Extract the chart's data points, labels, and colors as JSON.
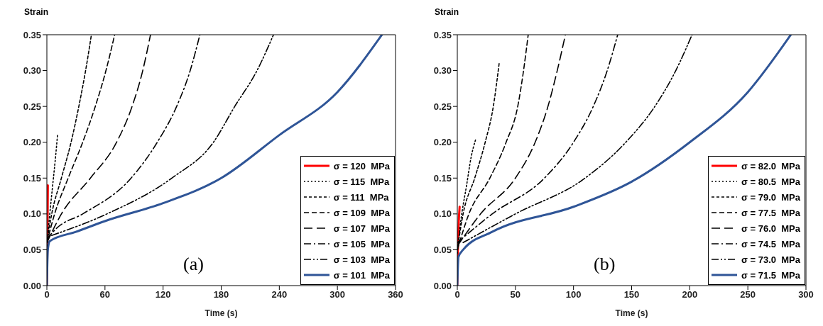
{
  "chart_data": [
    {
      "type": "line",
      "xlabel": "Time (s)",
      "ylabel": "Strain",
      "annotations": [
        "(a)"
      ],
      "xlim": [
        0,
        360
      ],
      "xticks": [
        0,
        60,
        120,
        180,
        240,
        300,
        360
      ],
      "ylim": [
        0,
        0.35
      ],
      "yticks": [
        {
          "value": 0,
          "label": "0.00"
        },
        {
          "value": 0.05,
          "label": "0.05"
        },
        {
          "value": 0.1,
          "label": "0.10"
        },
        {
          "value": 0.15,
          "label": "0.15"
        },
        {
          "value": 0.2,
          "label": "0.20"
        },
        {
          "value": 0.25,
          "label": "0.25"
        },
        {
          "value": 0.3,
          "label": "0.30"
        },
        {
          "value": 0.35,
          "label": "0.35"
        }
      ],
      "grid": false,
      "legend": "bottom right",
      "marker": "none",
      "series": [
        {
          "name": "σ = 120  MPa",
          "color": "#ff0000",
          "line_style": "solid",
          "x": [
            0,
            0.5,
            1
          ],
          "values": [
            0,
            0.05,
            0.14
          ]
        },
        {
          "name": "σ = 115  MPa",
          "color": "#000000",
          "line_style": "dotted",
          "x": [
            0,
            1,
            3,
            6,
            9,
            11
          ],
          "values": [
            0.05,
            0.07,
            0.1,
            0.14,
            0.18,
            0.21
          ]
        },
        {
          "name": "σ = 111  MPa",
          "color": "#000000",
          "line_style": "dashed",
          "x": [
            0,
            5,
            15,
            25,
            33,
            40,
            46
          ],
          "values": [
            0.06,
            0.1,
            0.15,
            0.2,
            0.25,
            0.3,
            0.35
          ]
        },
        {
          "name": "σ = 109  MPa",
          "color": "#000000",
          "line_style": "dashed",
          "x": [
            0,
            8,
            22,
            37,
            50,
            61,
            70
          ],
          "values": [
            0.06,
            0.1,
            0.15,
            0.2,
            0.25,
            0.3,
            0.35
          ]
        },
        {
          "name": "σ = 107  MPa",
          "color": "#000000",
          "line_style": "dashed",
          "x": [
            0,
            15,
            45,
            72,
            88,
            99,
            107
          ],
          "values": [
            0.06,
            0.1,
            0.15,
            0.2,
            0.25,
            0.3,
            0.35
          ]
        },
        {
          "name": "σ = 105  MPa",
          "color": "#000000",
          "line_style": "dashed",
          "x": [
            0,
            10,
            37,
            87,
            114,
            134,
            148,
            158
          ],
          "values": [
            0.065,
            0.08,
            0.1,
            0.15,
            0.2,
            0.25,
            0.3,
            0.35
          ]
        },
        {
          "name": "σ = 103  MPa",
          "color": "#000000",
          "line_style": "dashed",
          "x": [
            5,
            62,
            129,
            172,
            194,
            217,
            234
          ],
          "values": [
            0.07,
            0.1,
            0.15,
            0.2,
            0.25,
            0.3,
            0.35
          ]
        },
        {
          "name": "σ = 101  MPa",
          "color": "#2f5597",
          "line_style": "solid",
          "x": [
            0,
            1,
            3,
            30,
            60,
            120,
            180,
            240,
            300,
            346
          ],
          "values": [
            0,
            0.05,
            0.062,
            0.075,
            0.09,
            0.115,
            0.15,
            0.21,
            0.27,
            0.35
          ]
        }
      ]
    },
    {
      "type": "line",
      "xlabel": "Time (s)",
      "ylabel": "Strain",
      "annotations": [
        "(b)"
      ],
      "xlim": [
        0,
        300
      ],
      "xticks": [
        0,
        50,
        100,
        150,
        200,
        250,
        300
      ],
      "ylim": [
        0,
        0.35
      ],
      "yticks": [
        {
          "value": 0,
          "label": "0.00"
        },
        {
          "value": 0.05,
          "label": "0.05"
        },
        {
          "value": 0.1,
          "label": "0.10"
        },
        {
          "value": 0.15,
          "label": "0.15"
        },
        {
          "value": 0.2,
          "label": "0.20"
        },
        {
          "value": 0.25,
          "label": "0.25"
        },
        {
          "value": 0.3,
          "label": "0.30"
        },
        {
          "value": 0.35,
          "label": "0.35"
        }
      ],
      "grid": false,
      "legend": "bottom right",
      "marker": "none",
      "series": [
        {
          "name": "σ = 82.0  MPa",
          "color": "#ff0000",
          "line_style": "solid",
          "x": [
            0,
            0.5,
            1,
            2
          ],
          "values": [
            0,
            0.05,
            0.08,
            0.11
          ]
        },
        {
          "name": "σ = 80.5  MPa",
          "color": "#000000",
          "line_style": "dotted",
          "x": [
            0,
            3,
            8,
            12,
            16
          ],
          "values": [
            0.045,
            0.09,
            0.14,
            0.18,
            0.205
          ]
        },
        {
          "name": "σ = 79.0  MPa",
          "color": "#000000",
          "line_style": "dashed",
          "x": [
            0,
            5,
            15,
            24,
            31,
            36
          ],
          "values": [
            0.05,
            0.1,
            0.15,
            0.2,
            0.25,
            0.31
          ]
        },
        {
          "name": "σ = 77.5  MPa",
          "color": "#000000",
          "line_style": "dashed",
          "x": [
            0,
            10,
            28,
            42,
            52,
            57,
            61
          ],
          "values": [
            0.05,
            0.1,
            0.15,
            0.2,
            0.25,
            0.3,
            0.35
          ]
        },
        {
          "name": "σ = 76.0  MPa",
          "color": "#000000",
          "line_style": "dashed",
          "x": [
            0,
            20,
            50,
            67,
            78,
            86,
            93
          ],
          "values": [
            0.055,
            0.1,
            0.15,
            0.2,
            0.25,
            0.3,
            0.35
          ]
        },
        {
          "name": "σ = 74.5  MPa",
          "color": "#000000",
          "line_style": "dashed",
          "x": [
            0,
            30,
            75,
            100,
            117,
            129,
            138
          ],
          "values": [
            0.06,
            0.1,
            0.15,
            0.2,
            0.25,
            0.3,
            0.35
          ]
        },
        {
          "name": "σ = 73.0  MPa",
          "color": "#000000",
          "line_style": "dashed",
          "x": [
            5,
            50,
            110,
            145,
            170,
            188,
            202
          ],
          "values": [
            0.06,
            0.1,
            0.15,
            0.2,
            0.25,
            0.3,
            0.35
          ]
        },
        {
          "name": "σ = 71.5  MPa",
          "color": "#2f5597",
          "line_style": "solid",
          "x": [
            0,
            1,
            5,
            30,
            100,
            150,
            200,
            250,
            287
          ],
          "values": [
            0,
            0.04,
            0.05,
            0.075,
            0.11,
            0.145,
            0.2,
            0.27,
            0.35
          ]
        }
      ]
    }
  ]
}
